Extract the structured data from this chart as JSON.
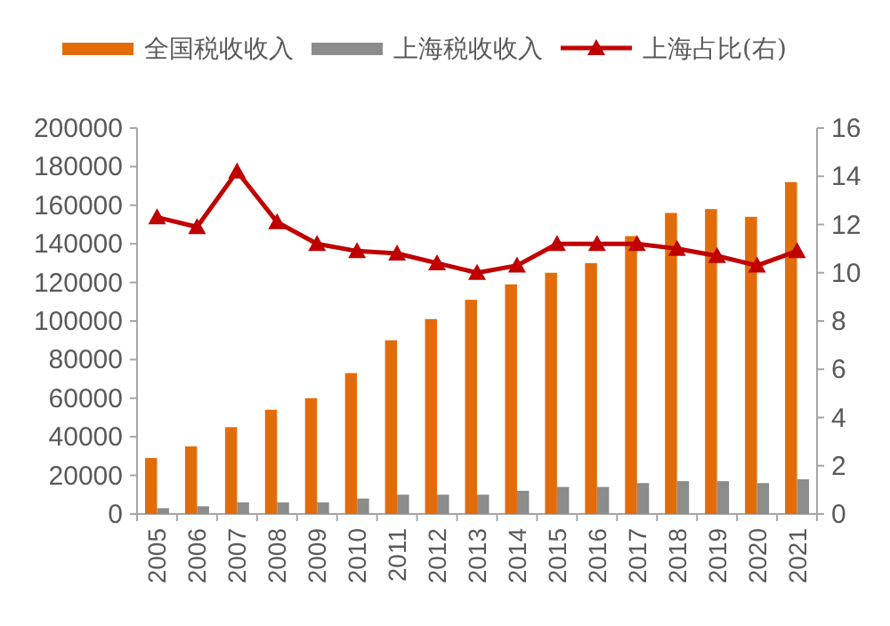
{
  "chart_data": {
    "type": "bar",
    "categories": [
      "2005",
      "2006",
      "2007",
      "2008",
      "2009",
      "2010",
      "2011",
      "2012",
      "2013",
      "2014",
      "2015",
      "2016",
      "2017",
      "2018",
      "2019",
      "2020",
      "2021"
    ],
    "series": [
      {
        "name": "全国税收收入",
        "color": "#e36c0a",
        "values": [
          29000,
          35000,
          45000,
          54000,
          60000,
          73000,
          90000,
          101000,
          111000,
          119000,
          125000,
          130000,
          144000,
          156000,
          158000,
          154000,
          172000
        ]
      },
      {
        "name": "上海税收收入",
        "color": "#8c8c8c",
        "values": [
          3000,
          4000,
          6000,
          6000,
          6000,
          8000,
          10000,
          10000,
          10000,
          12000,
          14000,
          14000,
          16000,
          17000,
          17000,
          16000,
          18000
        ]
      },
      {
        "name": "上海占比(右)",
        "type": "line",
        "axis": "y2",
        "color": "#c00000",
        "marker": "triangle",
        "values": [
          12.3,
          11.9,
          14.2,
          12.1,
          11.2,
          10.9,
          10.8,
          10.4,
          10.0,
          10.3,
          11.2,
          11.2,
          11.2,
          11.0,
          10.7,
          10.3,
          10.9
        ]
      }
    ],
    "ylim": [
      0,
      200000
    ],
    "yticks": [
      0,
      20000,
      40000,
      60000,
      80000,
      100000,
      120000,
      140000,
      160000,
      180000,
      200000
    ],
    "y2lim": [
      0,
      16
    ],
    "y2ticks": [
      0,
      2,
      4,
      6,
      8,
      10,
      12,
      14,
      16
    ],
    "grid": false,
    "legend": "top"
  }
}
